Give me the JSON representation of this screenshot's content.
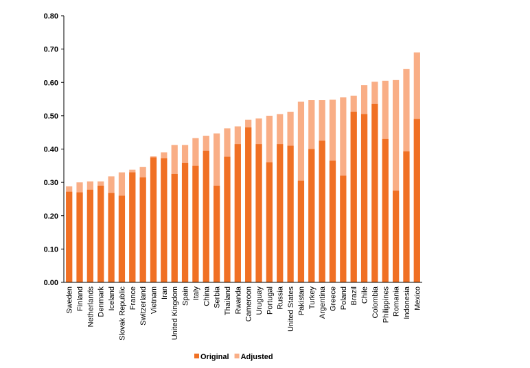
{
  "chart_data": {
    "type": "bar",
    "overlap": true,
    "categories": [
      "Sweden",
      "Finland",
      "Netherlands",
      "Denmark",
      "Iceland",
      "Slovak Republic",
      "France",
      "Switzerland",
      "Vietnam",
      "Iran",
      "United Kingdom",
      "Spain",
      "Italy",
      "China",
      "Serbia",
      "Thailand",
      "Rwanda",
      "Cameroon",
      "Uruguay",
      "Portugal",
      "Russia",
      "United States",
      "Pakistan",
      "Turkey",
      "Argentina",
      "Greece",
      "Poland",
      "Brazil",
      "Chile",
      "Colombia",
      "Philippines",
      "Romania",
      "Indonesia",
      "Mexico"
    ],
    "series": [
      {
        "name": "Original",
        "color": "#f07024",
        "values": [
          0.272,
          0.27,
          0.278,
          0.29,
          0.268,
          0.26,
          0.33,
          0.315,
          0.375,
          0.372,
          0.325,
          0.358,
          0.35,
          0.395,
          0.29,
          0.377,
          0.415,
          0.465,
          0.415,
          0.36,
          0.415,
          0.41,
          0.305,
          0.4,
          0.425,
          0.365,
          0.32,
          0.512,
          0.505,
          0.535,
          0.43,
          0.275,
          0.393,
          0.49
        ]
      },
      {
        "name": "Adjusted",
        "color": "#f9ae86",
        "values": [
          0.288,
          0.3,
          0.303,
          0.303,
          0.318,
          0.33,
          0.338,
          0.346,
          0.378,
          0.39,
          0.412,
          0.412,
          0.433,
          0.44,
          0.447,
          0.462,
          0.468,
          0.488,
          0.492,
          0.5,
          0.505,
          0.512,
          0.542,
          0.547,
          0.547,
          0.548,
          0.555,
          0.56,
          0.592,
          0.602,
          0.605,
          0.607,
          0.64,
          0.69
        ]
      }
    ],
    "ylim": [
      0,
      0.8
    ],
    "yticks": [
      {
        "value": 0,
        "label": "0.00"
      },
      {
        "value": 0.1,
        "label": "0.10"
      },
      {
        "value": 0.2,
        "label": "0.20"
      },
      {
        "value": 0.3,
        "label": "0.30"
      },
      {
        "value": 0.4,
        "label": "0.40"
      },
      {
        "value": 0.5,
        "label": "0.50"
      },
      {
        "value": 0.6,
        "label": "0.60"
      },
      {
        "value": 0.7,
        "label": "0.70"
      },
      {
        "value": 0.8,
        "label": "0.80"
      }
    ],
    "legend": "bottom"
  }
}
